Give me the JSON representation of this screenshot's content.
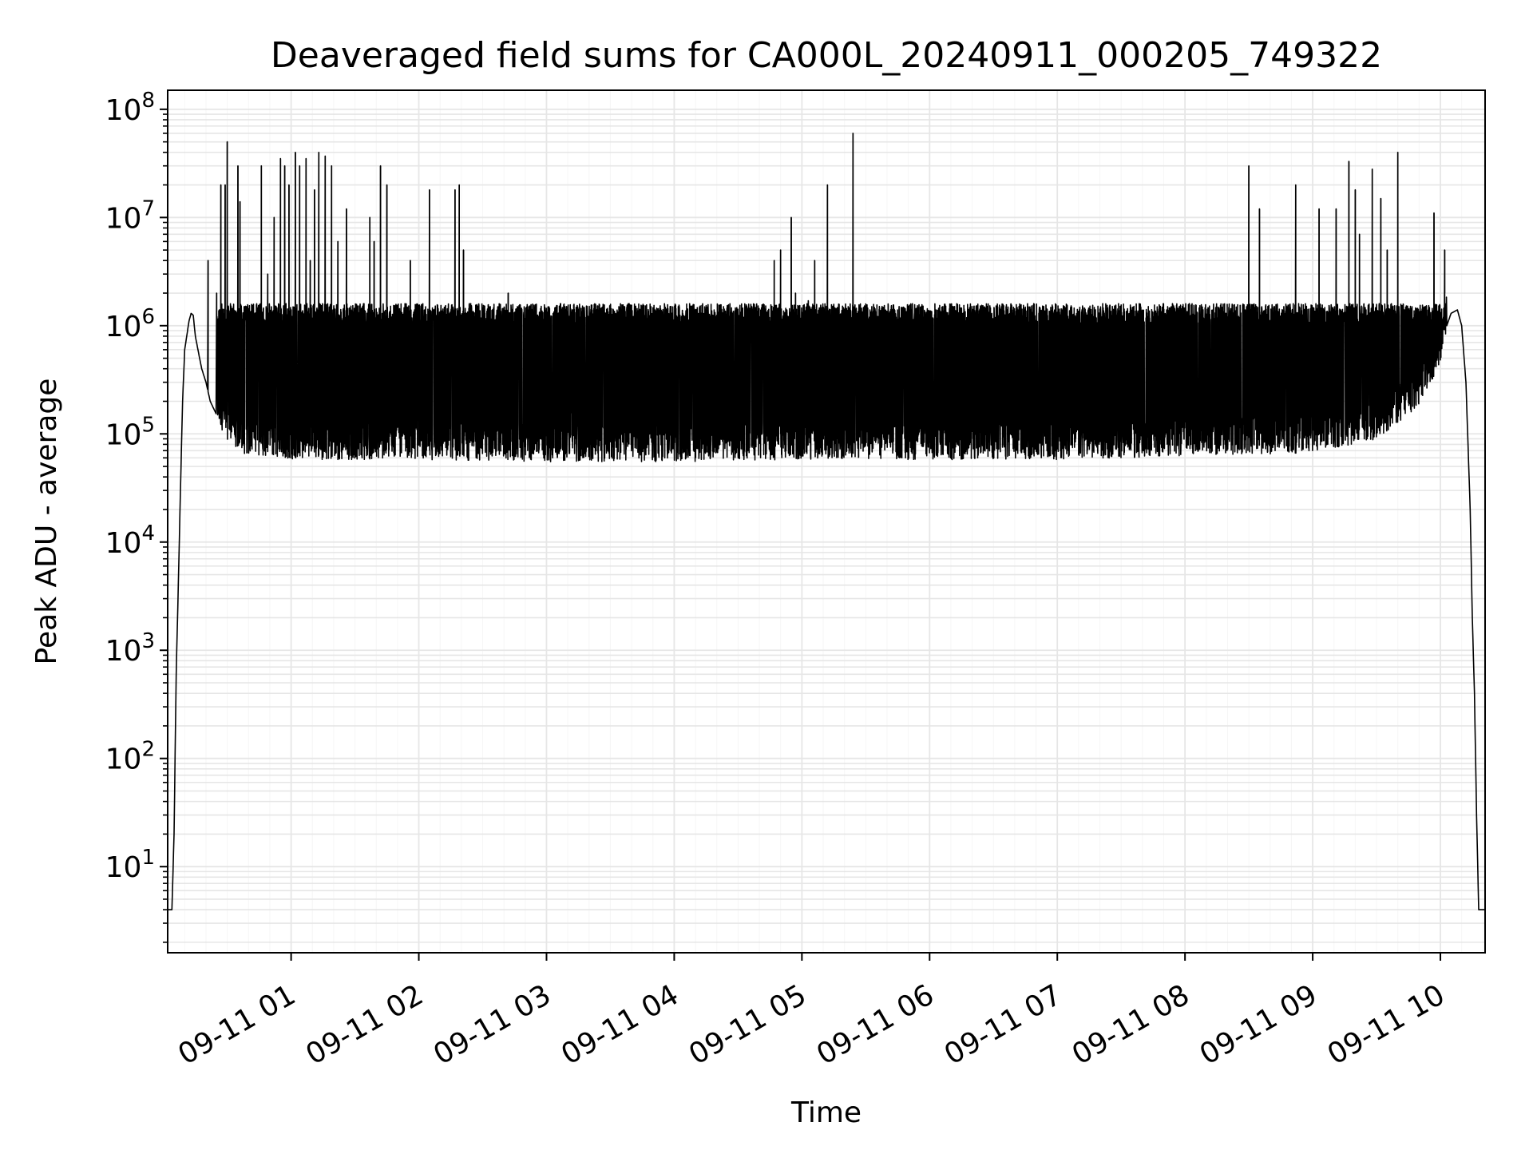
{
  "chart_data": {
    "type": "line",
    "title": "Deaveraged field sums for CA000L_20240911_000205_749322",
    "xlabel": "Time",
    "ylabel": "Peak ADU - average",
    "yscale": "log",
    "ylim": [
      1.6,
      150000000
    ],
    "xlim": [
      "2024-09-11 00:02",
      "2024-09-11 10:21"
    ],
    "x_ticks": [
      "2024-09-11 01:00",
      "2024-09-11 02:00",
      "2024-09-11 03:00",
      "2024-09-11 04:00",
      "2024-09-11 05:00",
      "2024-09-11 06:00",
      "2024-09-11 07:00",
      "2024-09-11 08:00",
      "2024-09-11 09:00",
      "2024-09-11 10:00"
    ],
    "x_tick_labels": [
      "09-11 01",
      "09-11 02",
      "09-11 03",
      "09-11 04",
      "09-11 05",
      "09-11 06",
      "09-11 07",
      "09-11 08",
      "09-11 09",
      "09-11 10"
    ],
    "x_tick_rotation_deg": 30,
    "y_ticks": [
      10,
      100,
      1000,
      10000,
      100000,
      1000000,
      10000000,
      100000000
    ],
    "y_tick_labels": [
      {
        "base": "10",
        "exp": "1"
      },
      {
        "base": "10",
        "exp": "2"
      },
      {
        "base": "10",
        "exp": "3"
      },
      {
        "base": "10",
        "exp": "4"
      },
      {
        "base": "10",
        "exp": "5"
      },
      {
        "base": "10",
        "exp": "6"
      },
      {
        "base": "10",
        "exp": "7"
      },
      {
        "base": "10",
        "exp": "8"
      }
    ],
    "grid": true,
    "minor_grid": true,
    "line_color": "#000000",
    "grid_color": "#e6e6e6",
    "series": [
      {
        "x": [
          "2024-09-11 00:02",
          "2024-09-11 00:04",
          "2024-09-11 00:05",
          "2024-09-11 00:06",
          "2024-09-11 00:07",
          "2024-09-11 00:08",
          "2024-09-11 00:09",
          "2024-09-11 00:10",
          "2024-09-11 00:12",
          "2024-09-11 00:13",
          "2024-09-11 00:14",
          "2024-09-11 00:15",
          "2024-09-11 00:17",
          "2024-09-11 00:18",
          "2024-09-11 00:20",
          "2024-09-11 00:22",
          "2024-09-11 00:25",
          "2024-09-11 00:30",
          "2024-09-11 00:35",
          "2024-09-11 00:40",
          "2024-09-11 00:50",
          "2024-09-11 01:00",
          "2024-09-11 01:30",
          "2024-09-11 02:00",
          "2024-09-11 03:00",
          "2024-09-11 04:00",
          "2024-09-11 05:00",
          "2024-09-11 06:00",
          "2024-09-11 07:00",
          "2024-09-11 08:00",
          "2024-09-11 09:00",
          "2024-09-11 09:30",
          "2024-09-11 09:50",
          "2024-09-11 10:00",
          "2024-09-11 10:03",
          "2024-09-11 10:05",
          "2024-09-11 10:08",
          "2024-09-11 10:10",
          "2024-09-11 10:12",
          "2024-09-11 10:14",
          "2024-09-11 10:15",
          "2024-09-11 10:16",
          "2024-09-11 10:17",
          "2024-09-11 10:18",
          "2024-09-11 10:19",
          "2024-09-11 10:21"
        ],
        "y": [
          4,
          4,
          20,
          600,
          4000,
          30000,
          200000,
          600000,
          1100000,
          1300000,
          1250000,
          800000,
          500000,
          400000,
          300000,
          200000,
          150000,
          100000,
          80000,
          70000,
          70000,
          65000,
          65000,
          65000,
          62000,
          62000,
          65000,
          65000,
          65000,
          70000,
          75000,
          100000,
          200000,
          500000,
          1000000,
          1300000,
          1400000,
          1000000,
          300000,
          20000,
          2000,
          400,
          30,
          4,
          4,
          4
        ]
      }
    ],
    "peak_band": {
      "x_start": "2024-09-11 00:25",
      "x_end": "2024-09-11 10:03",
      "upper": 1600000,
      "baseline_note": "dense rapid oscillation between the baseline and about 1.6e6"
    },
    "spikes": {
      "x": [
        "2024-09-11 00:21",
        "2024-09-11 00:25",
        "2024-09-11 00:27",
        "2024-09-11 00:29",
        "2024-09-11 00:30",
        "2024-09-11 00:33",
        "2024-09-11 00:35",
        "2024-09-11 00:36",
        "2024-09-11 00:38",
        "2024-09-11 00:46",
        "2024-09-11 00:49",
        "2024-09-11 00:52",
        "2024-09-11 00:55",
        "2024-09-11 00:57",
        "2024-09-11 00:59",
        "2024-09-11 01:02",
        "2024-09-11 01:04",
        "2024-09-11 01:07",
        "2024-09-11 01:09",
        "2024-09-11 01:11",
        "2024-09-11 01:13",
        "2024-09-11 01:16",
        "2024-09-11 01:19",
        "2024-09-11 01:22",
        "2024-09-11 01:26",
        "2024-09-11 01:37",
        "2024-09-11 01:39",
        "2024-09-11 01:42",
        "2024-09-11 01:45",
        "2024-09-11 01:50",
        "2024-09-11 01:53",
        "2024-09-11 01:56",
        "2024-09-11 02:05",
        "2024-09-11 02:17",
        "2024-09-11 02:19",
        "2024-09-11 02:21",
        "2024-09-11 02:27",
        "2024-09-11 02:38",
        "2024-09-11 02:42",
        "2024-09-11 03:12",
        "2024-09-11 03:29",
        "2024-09-11 04:21",
        "2024-09-11 04:47",
        "2024-09-11 04:50",
        "2024-09-11 04:53",
        "2024-09-11 04:55",
        "2024-09-11 04:57",
        "2024-09-11 05:03",
        "2024-09-11 05:06",
        "2024-09-11 05:12",
        "2024-09-11 05:24",
        "2024-09-11 08:30",
        "2024-09-11 08:35",
        "2024-09-11 08:42",
        "2024-09-11 08:52",
        "2024-09-11 09:03",
        "2024-09-11 09:11",
        "2024-09-11 09:17",
        "2024-09-11 09:20",
        "2024-09-11 09:22",
        "2024-09-11 09:28",
        "2024-09-11 09:32",
        "2024-09-11 09:35",
        "2024-09-11 09:40",
        "2024-09-11 09:57",
        "2024-09-11 10:02"
      ],
      "y": [
        4000000,
        2000000,
        20000000,
        20000000,
        50000000,
        1000000,
        30000000,
        14000000,
        1500000,
        30000000,
        3000000,
        10000000,
        35000000,
        30000000,
        20000000,
        40000000,
        30000000,
        35000000,
        4000000,
        18000000,
        40000000,
        37000000,
        30000000,
        6000000,
        12000000,
        10000000,
        6000000,
        30000000,
        20000000,
        800000,
        800000,
        4000000,
        18000000,
        18000000,
        20000000,
        5000000,
        1000000,
        1000000,
        2000000,
        1000000,
        800000,
        1200000,
        4000000,
        5000000,
        1300000,
        10000000,
        2000000,
        1700000,
        4000000,
        20000000,
        60000000,
        30000000,
        12000000,
        1500000,
        20000000,
        12000000,
        12000000,
        33000000,
        18000000,
        7000000,
        28000000,
        15000000,
        5000000,
        40000000,
        11000000,
        5000000
      ]
    }
  }
}
